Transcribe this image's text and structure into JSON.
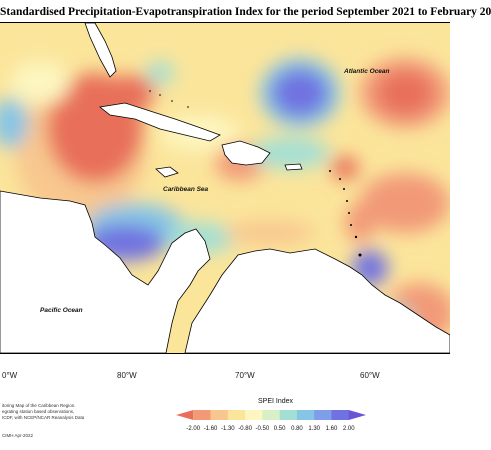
{
  "title": "Standardised Precipitation-Evapotranspiration Index for the period September 2021 to February 20",
  "map": {
    "ocean_labels": {
      "atlantic": "Atlantic Ocean",
      "caribbean": "Caribbean Sea",
      "pacific": "Pacific Ocean"
    },
    "longitude_ticks": [
      "0°W",
      "80°W",
      "70°W",
      "60°W"
    ]
  },
  "footer": {
    "line1": "itoring Map of the Caribbean Region.",
    "line2": "egrating station based observations,",
    "line3": "ICDF, with NCEP/NCAR Reanalysis Data",
    "credit": "CIMH Apr-2022"
  },
  "legend": {
    "title": "SPEI Index",
    "ticks": [
      "-2.00",
      "-1.60",
      "-1.30",
      "-0.80",
      "-0.50",
      "0.50",
      "0.80",
      "1.30",
      "1.60",
      "2.00"
    ],
    "colors": [
      "#e8705a",
      "#f29a78",
      "#f8c78f",
      "#fbe59b",
      "#fdf6c0",
      "#d7f0c6",
      "#a4dfd4",
      "#86c5e5",
      "#7f9de8",
      "#6f72e0",
      "#6a55d8"
    ]
  }
}
